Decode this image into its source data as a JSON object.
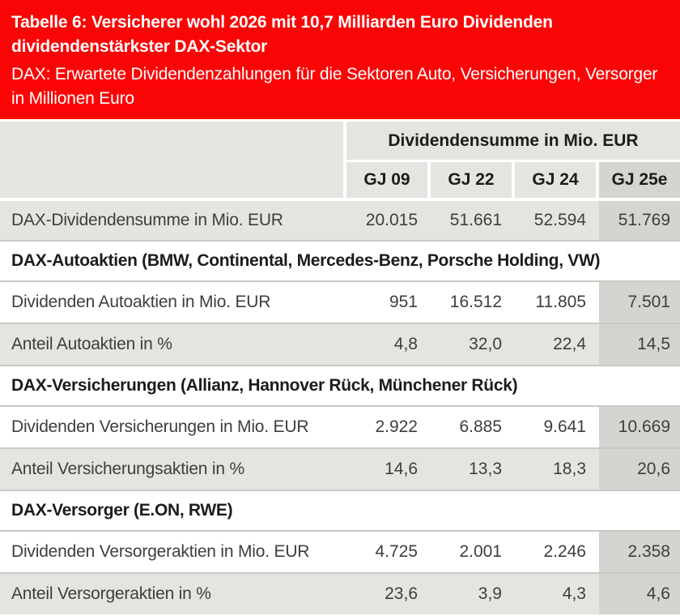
{
  "colors": {
    "accent": "#fa0505",
    "rowbg": "#e5e4e1",
    "hlbg": "#d5d4d0",
    "divider": "#c9c8c5",
    "textc": "#3f3e3c",
    "boldc": "#1d1c1a",
    "header_text": "#ffffff"
  },
  "header": {
    "title": "Tabelle 6: Versicherer wohl 2026 mit 10,7 Milliarden Euro Dividenden dividendenstärkster DAX-Sektor",
    "subtitle": "DAX: Erwartete Dividendenzahlungen für die Sektoren Auto, Versicherungen, Versorger in Millionen Euro"
  },
  "table": {
    "group_header": "Dividendensumme in Mio. EUR",
    "columns": [
      "GJ 09",
      "GJ 22",
      "GJ 24",
      "GJ 25e"
    ],
    "highlight_column": "GJ 25e",
    "sections": [
      {
        "rows": [
          {
            "label": "DAX-Dividendensumme in Mio. EUR",
            "values": [
              "20.015",
              "51.661",
              "52.594",
              "51.769"
            ]
          }
        ]
      },
      {
        "header": "DAX-Autoaktien (BMW, Continental, Mercedes-Benz, Porsche Holding, VW)",
        "rows": [
          {
            "label": "Dividenden Autoaktien in Mio. EUR",
            "values": [
              "951",
              "16.512",
              "11.805",
              "7.501"
            ]
          },
          {
            "label": "Anteil Autoaktien in %",
            "values": [
              "4,8",
              "32,0",
              "22,4",
              "14,5"
            ]
          }
        ]
      },
      {
        "header": "DAX-Versicherungen (Allianz, Hannover Rück, Münchener Rück)",
        "rows": [
          {
            "label": "Dividenden Versicherungen in Mio. EUR",
            "values": [
              "2.922",
              "6.885",
              "9.641",
              "10.669"
            ]
          },
          {
            "label": "Anteil Versicherungsaktien in %",
            "values": [
              "14,6",
              "13,3",
              "18,3",
              "20,6"
            ]
          }
        ]
      },
      {
        "header": "DAX-Versorger (E.ON, RWE)",
        "rows": [
          {
            "label": "Dividenden Versorgeraktien in Mio. EUR",
            "values": [
              "4.725",
              "2.001",
              "2.246",
              "2.358"
            ]
          },
          {
            "label": "Anteil Versorgeraktien in %",
            "values": [
              "23,6",
              "3,9",
              "4,3",
              "4,6"
            ]
          }
        ]
      }
    ]
  },
  "chart_data": {
    "type": "table",
    "title": "Tabelle 6: Versicherer wohl 2026 mit 10,7 Milliarden Euro Dividenden dividendenstärkster DAX-Sektor",
    "subtitle": "DAX: Erwartete Dividendenzahlungen für die Sektoren Auto, Versicherungen, Versorger in Millionen Euro",
    "column_group_label": "Dividendensumme in Mio. EUR",
    "columns": [
      "GJ 09",
      "GJ 22",
      "GJ 24",
      "GJ 25e"
    ],
    "rows": [
      {
        "label": "DAX-Dividendensumme in Mio. EUR",
        "values": [
          20015,
          51661,
          52594,
          51769
        ]
      },
      {
        "section": "DAX-Autoaktien (BMW, Continental, Mercedes-Benz, Porsche Holding, VW)"
      },
      {
        "label": "Dividenden Autoaktien in Mio. EUR",
        "values": [
          951,
          16512,
          11805,
          7501
        ]
      },
      {
        "label": "Anteil Autoaktien in %",
        "values": [
          4.8,
          32.0,
          22.4,
          14.5
        ]
      },
      {
        "section": "DAX-Versicherungen (Allianz, Hannover Rück, Münchener Rück)"
      },
      {
        "label": "Dividenden Versicherungen in Mio. EUR",
        "values": [
          2922,
          6885,
          9641,
          10669
        ]
      },
      {
        "label": "Anteil Versicherungsaktien in %",
        "values": [
          14.6,
          13.3,
          18.3,
          20.6
        ]
      },
      {
        "section": "DAX-Versorger (E.ON, RWE)"
      },
      {
        "label": "Dividenden Versorgeraktien in Mio. EUR",
        "values": [
          4725,
          2001,
          2246,
          2358
        ]
      },
      {
        "label": "Anteil Versorgeraktien in %",
        "values": [
          23.6,
          3.9,
          4.3,
          4.6
        ]
      }
    ]
  }
}
